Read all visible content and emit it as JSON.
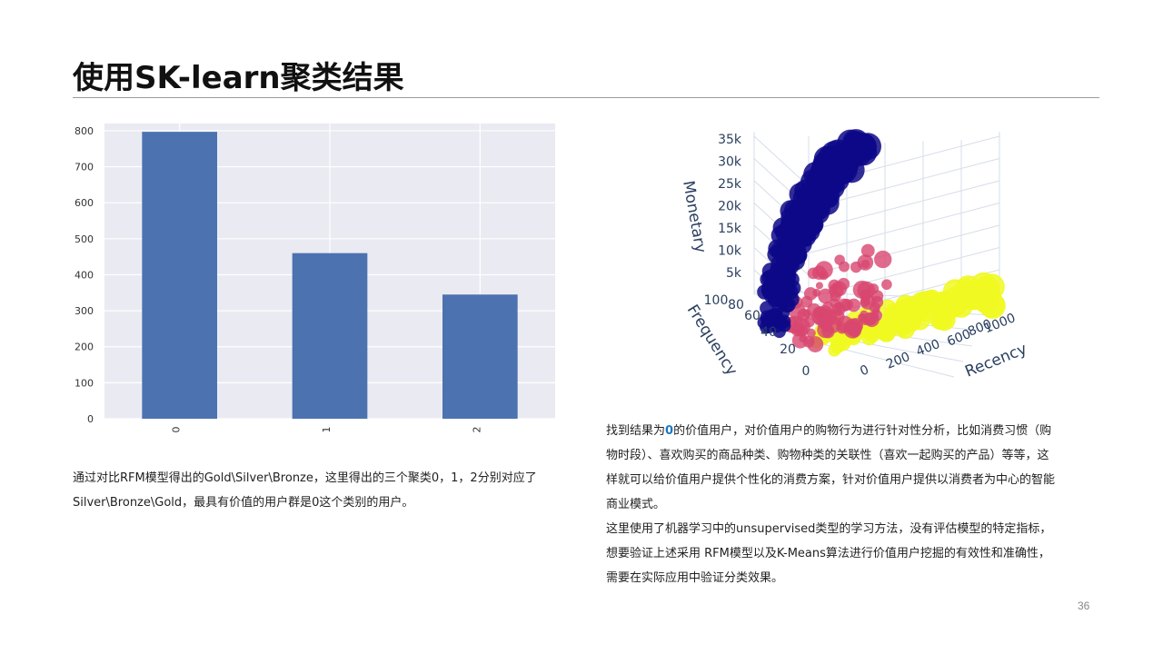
{
  "slide": {
    "title": "使用SK-learn聚类结果",
    "page_number": "36"
  },
  "chart_data": [
    {
      "type": "bar",
      "categories": [
        "0",
        "1",
        "2"
      ],
      "values": [
        797,
        460,
        345
      ],
      "ylim": [
        0,
        820
      ],
      "yticks": [
        0,
        100,
        200,
        300,
        400,
        500,
        600,
        700,
        800
      ],
      "grid": true,
      "colors": {
        "bar": "#4c72b0",
        "background": "#eaeaf2",
        "grid": "#ffffff"
      }
    },
    {
      "type": "scatter",
      "axes": {
        "z_label": "Monetary",
        "y_label": "Frequency",
        "x_label": "Recency",
        "z_ticks": [
          "5k",
          "10k",
          "15k",
          "20k",
          "25k",
          "30k",
          "35k"
        ],
        "y_ticks": [
          "0",
          "20",
          "40",
          "60",
          "80",
          "100"
        ],
        "x_ticks": [
          "0",
          "200",
          "400",
          "600",
          "800",
          "1000"
        ]
      },
      "clusters": [
        {
          "id": "0",
          "color": "#0d0887"
        },
        {
          "id": "1",
          "color": "#d8466f"
        },
        {
          "id": "2",
          "color": "#f0f921"
        }
      ]
    }
  ],
  "left_text": "通过对比RFM模型得出的Gold\\Silver\\Bronze，这里得出的三个聚类0，1，2分别对应了Silver\\Bronze\\Gold，最具有价值的用户群是0这个类别的用户。",
  "right_text": {
    "p1_before": "找到结果为",
    "p1_highlight": "0",
    "p1_after": "的价值用户，对价值用户的购物行为进行针对性分析，比如消费习惯（购物时段）、喜欢购买的商品种类、购物种类的关联性（喜欢一起购买的产品）等等，这样就可以给价值用户提供个性化的消费方案，针对价值用户提供以消费者为中心的智能商业模式。",
    "p2": "这里使用了机器学习中的unsupervised类型的学习方法，没有评估模型的特定指标，想要验证上述采用 RFM模型以及K-Means算法进行价值用户挖掘的有效性和准确性，需要在实际应用中验证分类效果。"
  }
}
